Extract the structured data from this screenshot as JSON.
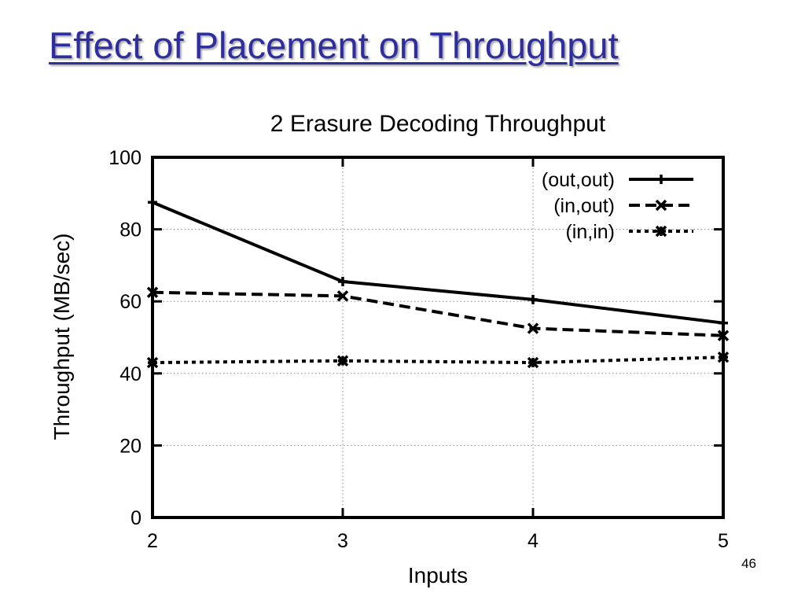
{
  "slide": {
    "title": "Effect of Placement on Throughput",
    "page_number": "46"
  },
  "chart_data": {
    "type": "line",
    "title": "2 Erasure Decoding Throughput",
    "xlabel": "Inputs",
    "ylabel": "Throughput (MB/sec)",
    "x": [
      2,
      3,
      4,
      5
    ],
    "xlim": [
      2,
      5
    ],
    "ylim": [
      0,
      100
    ],
    "xticks": [
      2,
      3,
      4,
      5
    ],
    "yticks": [
      0,
      20,
      40,
      60,
      80,
      100
    ],
    "grid": true,
    "legend_position": "top-right",
    "series": [
      {
        "name": "(out,out)",
        "values": [
          87.5,
          65.5,
          60.5,
          54
        ],
        "line_style": "solid",
        "marker": "plus"
      },
      {
        "name": "(in,out)",
        "values": [
          62.5,
          61.5,
          52.5,
          50.5
        ],
        "line_style": "dashed",
        "marker": "x"
      },
      {
        "name": "(in,in)",
        "values": [
          43,
          43.5,
          43,
          44.5
        ],
        "line_style": "dotted",
        "marker": "star"
      }
    ]
  }
}
